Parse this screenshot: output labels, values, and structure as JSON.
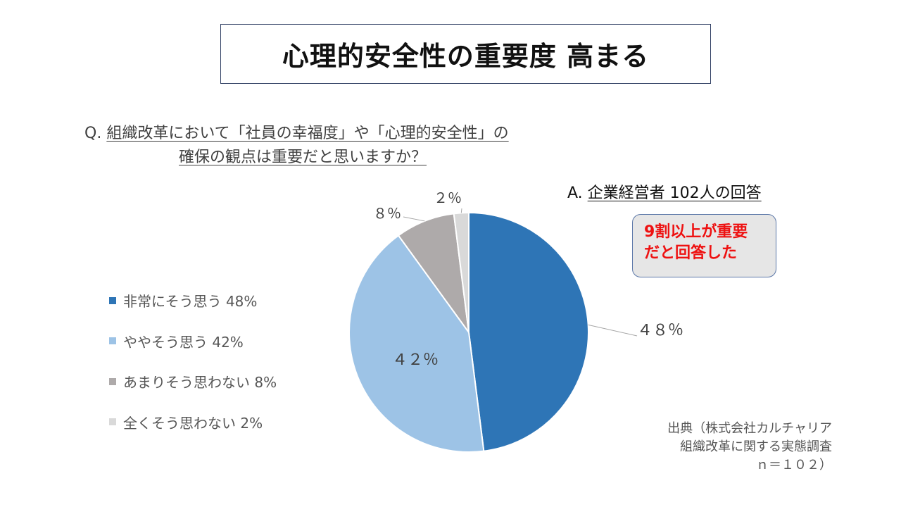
{
  "title": "心理的安全性の重要度 高まる",
  "question": {
    "prefix": "Q.",
    "line1": "組織改革において「社員の幸福度」や「心理的安全性」の",
    "line2": "確保の観点は重要だと思いますか？"
  },
  "answer": {
    "prefix": "A.",
    "text": "企業経営者 102人の回答"
  },
  "callout": {
    "line1": "9割以上が重要",
    "line2": "だと回答した"
  },
  "source": {
    "line1": "出典（株式会社カルチャリア",
    "line2": "組織改革に関する実態調査",
    "line3": "ｎ＝１０２）"
  },
  "chart_data": {
    "type": "pie",
    "slices": [
      {
        "legend": "非常にそう思う 48%",
        "value": 48,
        "data_label": "４８％",
        "color": "#2e75b6"
      },
      {
        "legend": "ややそう思う 42%",
        "value": 42,
        "data_label": "４２％",
        "color": "#9dc3e6"
      },
      {
        "legend": "あまりそう思わない 8%",
        "value": 8,
        "data_label": "８％",
        "color": "#aeaaaa"
      },
      {
        "legend": "全くそう思わない 2%",
        "value": 2,
        "data_label": "２％",
        "color": "#d9d9d9"
      }
    ],
    "legend_position": "left"
  }
}
